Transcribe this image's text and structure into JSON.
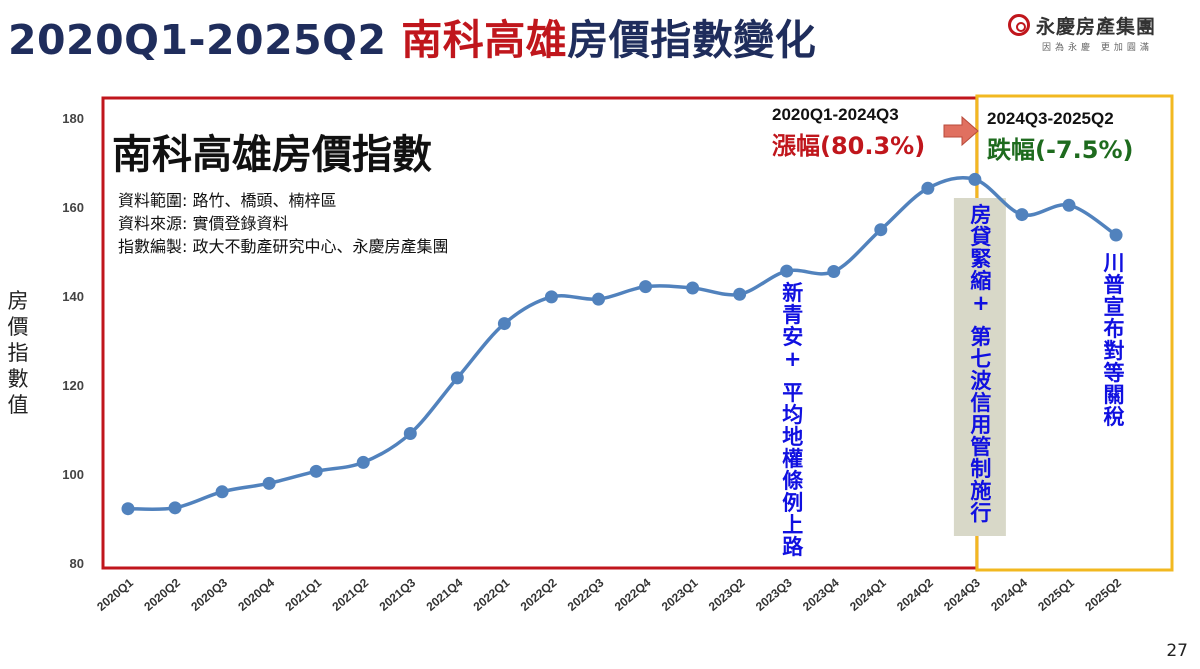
{
  "slide": {
    "title_range": "2020Q1-2025Q2",
    "title_region": "南科高雄",
    "title_rest": "房價指數變化",
    "page_number": "27"
  },
  "logo": {
    "name": "永慶房產集團",
    "tagline": "因為永慶 更加圓滿"
  },
  "colors": {
    "line": "#5182bd",
    "red": "#c0161c",
    "gold": "#f2b820",
    "green": "#1e6b1e",
    "blue_annotation": "#1010e0",
    "navy": "#1f2d5c",
    "shade": "#d8d8c8"
  },
  "chart_data": {
    "type": "line",
    "title": "南科高雄房價指數",
    "ylabel": "房價指數值",
    "xlabel": "",
    "ylim": [
      80,
      180
    ],
    "yticks": [
      80,
      100,
      120,
      140,
      160,
      180
    ],
    "categories": [
      "2020Q1",
      "2020Q2",
      "2020Q3",
      "2020Q4",
      "2021Q1",
      "2021Q2",
      "2021Q3",
      "2021Q4",
      "2022Q1",
      "2022Q2",
      "2022Q3",
      "2022Q4",
      "2023Q1",
      "2023Q2",
      "2023Q3",
      "2023Q4",
      "2024Q1",
      "2024Q2",
      "2024Q3",
      "2024Q4",
      "2025Q1",
      "2025Q2"
    ],
    "series": [
      {
        "values": [
          92.2,
          92.4,
          96.0,
          97.9,
          100.6,
          102.6,
          109.1,
          121.6,
          133.8,
          139.8,
          139.3,
          142.1,
          141.8,
          140.4,
          145.6,
          145.5,
          154.9,
          164.2,
          166.2,
          158.3,
          160.4,
          153.7
        ]
      }
    ],
    "grid": false,
    "legend": "none",
    "notes": [
      "資料範圍: 路竹、橋頭、楠梓區",
      "資料來源: 實價登錄資料",
      "指數編製: 政大不動產研究中心、永慶房產集團"
    ],
    "periods": [
      {
        "range": "2020Q1-2024Q3",
        "label": "漲幅(80.3%)",
        "start": "2020Q1",
        "end": "2024Q3"
      },
      {
        "range": "2024Q3-2025Q2",
        "label": "跌幅(-7.5%)",
        "start": "2024Q3",
        "end": "2025Q2"
      }
    ],
    "annotations": [
      {
        "category": "2023Q3",
        "text": "新青安+ 平均地權條例上路"
      },
      {
        "category": "2024Q3",
        "text": "房貸緊縮+ 第七波信用管制施行"
      },
      {
        "category": "2025Q2",
        "text": "川普宣布對等關稅"
      }
    ]
  }
}
